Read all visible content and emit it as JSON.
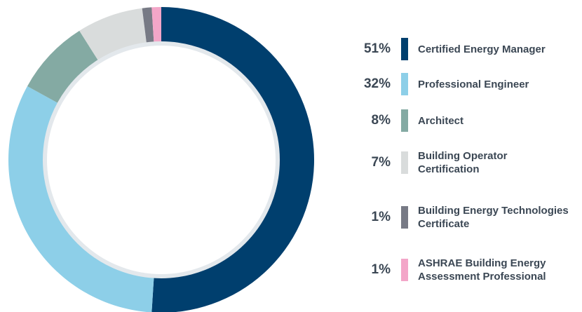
{
  "chart_data": {
    "type": "pie",
    "categories": [
      "Certified Energy Manager",
      "Professional Engineer",
      "Architect",
      "Building Operator Certification",
      "Building Energy Technologies Certificate",
      "ASHRAE Building Energy Assessment Professional"
    ],
    "values": [
      51,
      32,
      8,
      7,
      1,
      1
    ],
    "value_labels": [
      "51%",
      "32%",
      "8%",
      "7%",
      "1%",
      "1%"
    ],
    "colors": [
      "#003f6e",
      "#8dcfe8",
      "#84aaa3",
      "#d9dcdc",
      "#777a85",
      "#f3a6c8"
    ],
    "legend": "right"
  }
}
